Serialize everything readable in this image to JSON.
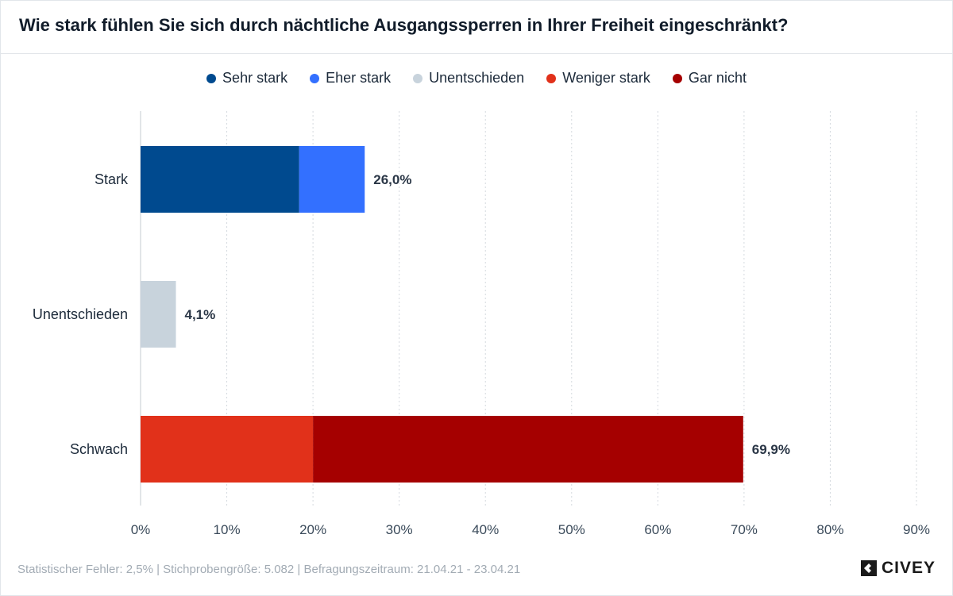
{
  "title": "Wie stark fühlen Sie sich durch nächtliche Ausgangssperren in Ihrer Freiheit eingeschränkt?",
  "legend": [
    {
      "label": "Sehr stark",
      "color": "#004a8f"
    },
    {
      "label": "Eher stark",
      "color": "#3370ff"
    },
    {
      "label": "Unentschieden",
      "color": "#c8d3dc"
    },
    {
      "label": "Weniger stark",
      "color": "#e1311a"
    },
    {
      "label": "Gar nicht",
      "color": "#a50000"
    }
  ],
  "chart_data": {
    "type": "bar",
    "orientation": "horizontal",
    "stacked": true,
    "categories": [
      "Stark",
      "Unentschieden",
      "Schwach"
    ],
    "series": [
      {
        "name": "Sehr stark",
        "color": "#004a8f",
        "values": [
          18.4,
          0,
          0
        ]
      },
      {
        "name": "Eher stark",
        "color": "#3370ff",
        "values": [
          7.6,
          0,
          0
        ]
      },
      {
        "name": "Unentschieden",
        "color": "#c8d3dc",
        "values": [
          0,
          4.1,
          0
        ]
      },
      {
        "name": "Weniger stark",
        "color": "#e1311a",
        "values": [
          0,
          0,
          20.0
        ]
      },
      {
        "name": "Gar nicht",
        "color": "#a50000",
        "values": [
          0,
          0,
          49.9
        ]
      }
    ],
    "totals": [
      26.0,
      4.1,
      69.9
    ],
    "total_labels": [
      "26,0%",
      "4,1%",
      "69,9%"
    ],
    "xlim": [
      0,
      90
    ],
    "xticks": [
      0,
      10,
      20,
      30,
      40,
      50,
      60,
      70,
      80,
      90
    ],
    "xtick_labels": [
      "0%",
      "10%",
      "20%",
      "30%",
      "40%",
      "50%",
      "60%",
      "70%",
      "80%",
      "90%"
    ],
    "grid": true,
    "legend_position": "top-center"
  },
  "footer": "Statistischer Fehler: 2,5% | Stichprobengröße: 5.082 | Befragungszeitraum: 21.04.21 - 23.04.21",
  "logo": {
    "text": "CIVEY"
  }
}
